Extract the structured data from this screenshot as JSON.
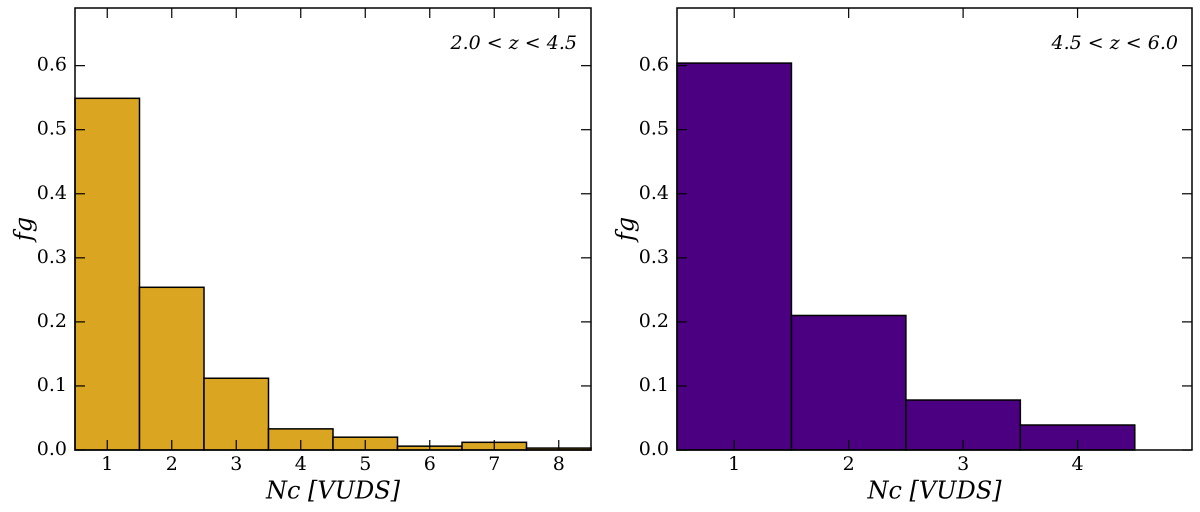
{
  "chart_data": [
    {
      "type": "histogram",
      "annotation": "2.0 < z < 4.5",
      "xlabel": "Nc [VUDS]",
      "ylabel": "fg",
      "bins": [
        0.5,
        1.5,
        2.5,
        3.5,
        4.5,
        5.5,
        6.5,
        7.5,
        8.5
      ],
      "values": [
        0.549,
        0.254,
        0.112,
        0.033,
        0.02,
        0.006,
        0.012,
        0.003
      ],
      "color": "#daa520",
      "xlim": [
        0.5,
        8.5
      ],
      "xticks": [
        1,
        2,
        3,
        4,
        5,
        6,
        7,
        8
      ],
      "ylim": [
        0,
        0.69
      ],
      "yticks": [
        {
          "value": 0,
          "label": "0.0"
        },
        0.1,
        0.2,
        0.3,
        0.4,
        0.5,
        0.6
      ]
    },
    {
      "type": "histogram",
      "annotation": "4.5 < z < 6.0",
      "xlabel": "Nc [VUDS]",
      "ylabel": "fg",
      "bins": [
        0.5,
        1.5,
        2.5,
        3.5,
        4.5
      ],
      "values": [
        0.604,
        0.21,
        0.078,
        0.039
      ],
      "color": "#4b0082",
      "xlim": [
        0.5,
        5.0
      ],
      "xticks": [
        1,
        2,
        3,
        4
      ],
      "ylim": [
        0,
        0.69
      ],
      "yticks": [
        {
          "value": 0,
          "label": "0.0"
        },
        0.1,
        0.2,
        0.3,
        0.4,
        0.5,
        0.6
      ]
    }
  ]
}
